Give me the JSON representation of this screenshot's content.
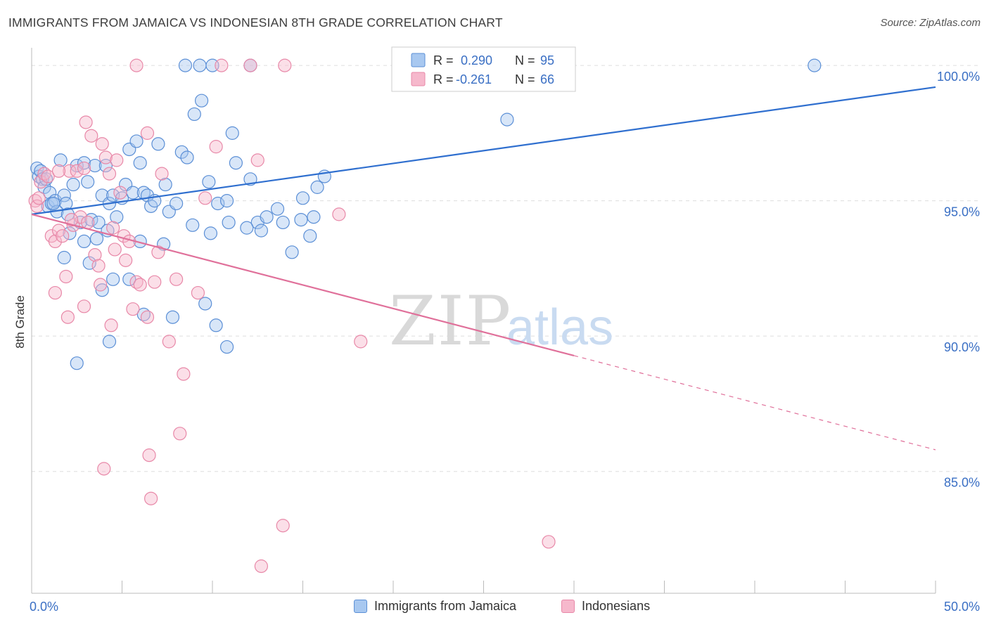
{
  "title": "IMMIGRANTS FROM JAMAICA VS INDONESIAN 8TH GRADE CORRELATION CHART",
  "source": "Source: ZipAtlas.com",
  "watermark": {
    "zip": "ZIP",
    "atlas": "atlas"
  },
  "colors": {
    "blue_fill": "#a8c8f0",
    "blue_stroke": "#5b8fd6",
    "blue_line": "#2f6fcf",
    "pink_fill": "#f6b8cc",
    "pink_stroke": "#e888a8",
    "pink_line": "#e0709a",
    "axis_label": "#3a6fc4",
    "grid": "#dddddd"
  },
  "stats_legend": {
    "rows": [
      {
        "r_label": "R =",
        "r_value": "0.290",
        "n_label": "N =",
        "n_value": "95",
        "color": "blue"
      },
      {
        "r_label": "R =",
        "r_value": "-0.261",
        "n_label": "N =",
        "n_value": "66",
        "color": "pink"
      }
    ]
  },
  "bottom_legend": [
    {
      "label": "Immigrants from Jamaica",
      "color": "blue"
    },
    {
      "label": "Indonesians",
      "color": "pink"
    }
  ],
  "chart_data": {
    "type": "scatter",
    "xlabel": "",
    "ylabel": "8th Grade",
    "xlim": [
      0,
      50
    ],
    "ylim": [
      80.5,
      100.6
    ],
    "x_tick_labels": [
      "0.0%",
      "50.0%"
    ],
    "y_ticks": [
      {
        "value": 100,
        "label": "100.0%"
      },
      {
        "value": 95,
        "label": "95.0%"
      },
      {
        "value": 90,
        "label": "90.0%"
      },
      {
        "value": 85,
        "label": "85.0%"
      }
    ],
    "grid": true,
    "series": [
      {
        "name": "Immigrants from Jamaica",
        "color": "blue",
        "trend": {
          "x": [
            0,
            50
          ],
          "y": [
            94.5,
            99.2
          ],
          "dashed_from": null
        },
        "points": [
          [
            0.3,
            96.2
          ],
          [
            0.4,
            95.9
          ],
          [
            0.5,
            96.1
          ],
          [
            0.6,
            95.8
          ],
          [
            0.7,
            95.5
          ],
          [
            0.8,
            95.8
          ],
          [
            0.9,
            94.8
          ],
          [
            1.0,
            95.3
          ],
          [
            1.1,
            94.9
          ],
          [
            1.3,
            95.0
          ],
          [
            1.4,
            94.6
          ],
          [
            1.6,
            96.5
          ],
          [
            1.8,
            95.2
          ],
          [
            1.9,
            94.9
          ],
          [
            2.0,
            94.5
          ],
          [
            2.3,
            95.6
          ],
          [
            2.5,
            96.3
          ],
          [
            2.7,
            94.2
          ],
          [
            2.9,
            96.4
          ],
          [
            3.1,
            95.7
          ],
          [
            3.3,
            94.3
          ],
          [
            3.5,
            96.3
          ],
          [
            3.7,
            94.2
          ],
          [
            3.9,
            95.2
          ],
          [
            4.1,
            96.3
          ],
          [
            4.3,
            94.9
          ],
          [
            4.5,
            95.2
          ],
          [
            4.7,
            94.4
          ],
          [
            5.0,
            95.1
          ],
          [
            5.2,
            95.6
          ],
          [
            5.4,
            96.9
          ],
          [
            5.6,
            95.3
          ],
          [
            5.8,
            97.2
          ],
          [
            6.0,
            96.4
          ],
          [
            6.2,
            95.3
          ],
          [
            6.4,
            95.2
          ],
          [
            6.6,
            94.8
          ],
          [
            6.8,
            95.0
          ],
          [
            7.0,
            97.1
          ],
          [
            7.4,
            95.6
          ],
          [
            7.6,
            94.6
          ],
          [
            8.0,
            94.9
          ],
          [
            8.3,
            96.8
          ],
          [
            8.6,
            96.6
          ],
          [
            9.0,
            98.2
          ],
          [
            9.4,
            98.7
          ],
          [
            9.8,
            95.7
          ],
          [
            10.3,
            94.9
          ],
          [
            10.8,
            95.0
          ],
          [
            11.1,
            97.5
          ],
          [
            11.3,
            96.4
          ],
          [
            12.1,
            95.8
          ],
          [
            12.5,
            94.2
          ],
          [
            13.0,
            94.4
          ],
          [
            13.6,
            94.7
          ],
          [
            14.4,
            93.1
          ],
          [
            15.0,
            95.1
          ],
          [
            15.4,
            93.7
          ],
          [
            15.8,
            95.5
          ],
          [
            16.2,
            95.9
          ],
          [
            1.8,
            92.9
          ],
          [
            3.2,
            92.7
          ],
          [
            3.9,
            91.7
          ],
          [
            4.5,
            92.1
          ],
          [
            5.4,
            92.1
          ],
          [
            6.2,
            90.8
          ],
          [
            7.8,
            90.7
          ],
          [
            9.6,
            91.2
          ],
          [
            10.2,
            90.4
          ],
          [
            10.8,
            89.6
          ],
          [
            4.3,
            89.8
          ],
          [
            2.5,
            89.0
          ],
          [
            8.5,
            100.0
          ],
          [
            9.3,
            100.0
          ],
          [
            10.0,
            100.0
          ],
          [
            12.1,
            100.0
          ],
          [
            21.6,
            100.0
          ],
          [
            25.3,
            100.0
          ],
          [
            26.3,
            98.0
          ],
          [
            43.3,
            100.0
          ],
          [
            1.2,
            94.9
          ],
          [
            2.1,
            93.8
          ],
          [
            2.9,
            93.5
          ],
          [
            3.6,
            93.6
          ],
          [
            4.2,
            93.9
          ],
          [
            6.0,
            93.5
          ],
          [
            7.3,
            93.4
          ],
          [
            8.9,
            94.1
          ],
          [
            9.9,
            93.8
          ],
          [
            10.9,
            94.2
          ],
          [
            11.9,
            94.0
          ],
          [
            12.7,
            93.9
          ],
          [
            13.9,
            94.2
          ],
          [
            14.9,
            94.3
          ],
          [
            15.6,
            94.4
          ]
        ]
      },
      {
        "name": "Indonesians",
        "color": "pink",
        "trend": {
          "x": [
            0,
            50
          ],
          "y": [
            94.5,
            85.8
          ],
          "dashed_from": 30
        },
        "points": [
          [
            0.2,
            95.0
          ],
          [
            0.3,
            94.8
          ],
          [
            0.5,
            95.7
          ],
          [
            0.7,
            96.0
          ],
          [
            0.9,
            95.9
          ],
          [
            1.1,
            93.7
          ],
          [
            1.3,
            93.5
          ],
          [
            1.5,
            93.9
          ],
          [
            1.7,
            93.7
          ],
          [
            1.9,
            92.2
          ],
          [
            2.1,
            96.1
          ],
          [
            2.3,
            94.1
          ],
          [
            2.5,
            96.1
          ],
          [
            2.7,
            94.4
          ],
          [
            2.9,
            96.2
          ],
          [
            3.1,
            94.2
          ],
          [
            3.3,
            97.4
          ],
          [
            3.5,
            93.0
          ],
          [
            3.7,
            92.6
          ],
          [
            3.9,
            97.1
          ],
          [
            4.1,
            96.6
          ],
          [
            4.3,
            96.0
          ],
          [
            4.5,
            94.0
          ],
          [
            4.7,
            96.5
          ],
          [
            4.9,
            95.3
          ],
          [
            5.1,
            93.7
          ],
          [
            5.4,
            93.5
          ],
          [
            5.8,
            92.0
          ],
          [
            6.0,
            91.9
          ],
          [
            6.4,
            97.5
          ],
          [
            6.8,
            92.0
          ],
          [
            7.2,
            96.0
          ],
          [
            8.0,
            92.1
          ],
          [
            9.6,
            95.1
          ],
          [
            10.2,
            97.0
          ],
          [
            12.1,
            100.0
          ],
          [
            14.0,
            100.0
          ],
          [
            17.0,
            94.5
          ],
          [
            18.2,
            89.8
          ],
          [
            0.4,
            95.1
          ],
          [
            1.3,
            91.6
          ],
          [
            2.0,
            90.7
          ],
          [
            2.9,
            91.1
          ],
          [
            3.8,
            91.9
          ],
          [
            4.4,
            90.4
          ],
          [
            5.6,
            91.0
          ],
          [
            6.4,
            90.7
          ],
          [
            7.6,
            89.8
          ],
          [
            8.4,
            88.6
          ],
          [
            9.2,
            91.6
          ],
          [
            8.2,
            86.4
          ],
          [
            6.5,
            85.6
          ],
          [
            4.0,
            85.1
          ],
          [
            6.6,
            84.0
          ],
          [
            13.9,
            83.0
          ],
          [
            12.7,
            81.5
          ],
          [
            28.6,
            82.4
          ],
          [
            5.8,
            100.0
          ],
          [
            10.5,
            100.0
          ],
          [
            12.5,
            96.5
          ],
          [
            3.0,
            97.9
          ],
          [
            1.5,
            96.1
          ],
          [
            2.2,
            94.3
          ],
          [
            4.6,
            93.2
          ],
          [
            5.2,
            92.8
          ],
          [
            7.0,
            93.1
          ]
        ]
      }
    ]
  }
}
